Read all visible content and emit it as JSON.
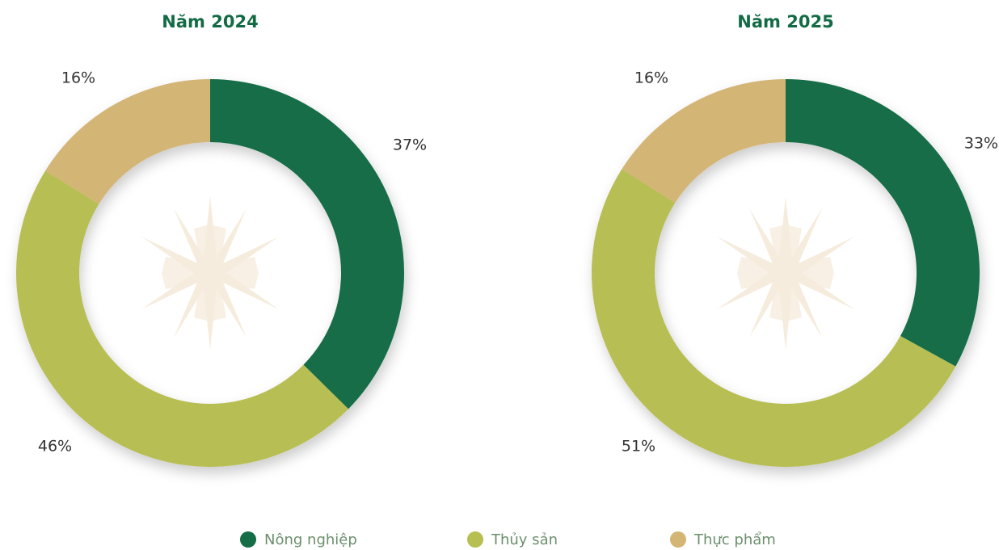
{
  "chart_data": [
    {
      "type": "pie",
      "title": "Năm 2024",
      "categories": [
        "Nông nghiệp",
        "Thủy sản",
        "Thực phẩm"
      ],
      "values": [
        37,
        46,
        16
      ],
      "value_labels": [
        "37%",
        "46%",
        "16%"
      ],
      "colors": [
        "#156d47",
        "#b7be52",
        "#d3b574"
      ]
    },
    {
      "type": "pie",
      "title": "Năm 2025",
      "categories": [
        "Nông nghiệp",
        "Thủy sản",
        "Thực phẩm"
      ],
      "values": [
        33,
        51,
        16
      ],
      "value_labels": [
        "33%",
        "51%",
        "16%"
      ],
      "colors": [
        "#156d47",
        "#b7be52",
        "#d3b574"
      ]
    }
  ]
}
